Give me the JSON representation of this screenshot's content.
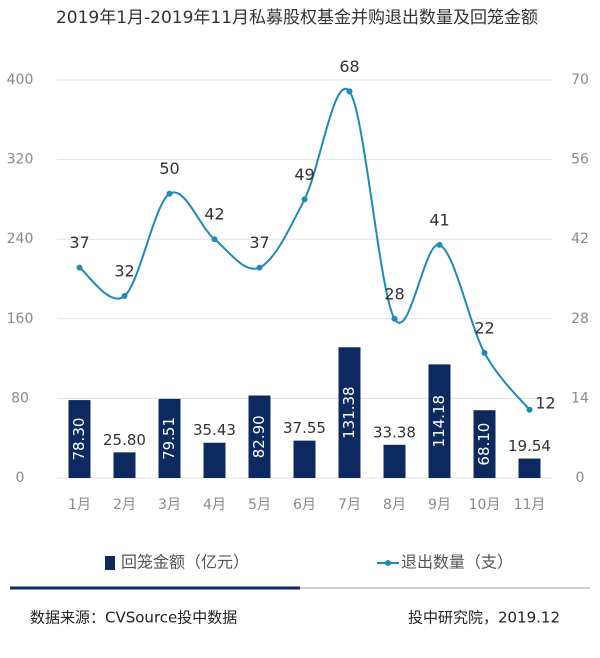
{
  "chart_data": {
    "type": "bar",
    "title": "2019年1月-2019年11月私募股权基金并购退出数量及回笼金额",
    "categories": [
      "1月",
      "2月",
      "3月",
      "4月",
      "5月",
      "6月",
      "7月",
      "8月",
      "9月",
      "10月",
      "11月"
    ],
    "series": [
      {
        "name": "回笼金额（亿元）",
        "type": "bar",
        "color": "#0c2a5f",
        "values": [
          78.3,
          25.8,
          79.51,
          35.43,
          82.9,
          37.55,
          131.38,
          33.38,
          114.18,
          68.1,
          19.54
        ],
        "value_labels": [
          "78.30",
          "25.80",
          "79.51",
          "35.43",
          "82.90",
          "37.55",
          "131.38",
          "33.38",
          "114.18",
          "68.10",
          "19.54"
        ]
      },
      {
        "name": "退出数量（支）",
        "type": "line",
        "axis": "y2",
        "color": "#1e8ab8",
        "values": [
          37,
          32,
          50,
          42,
          37,
          49,
          68,
          28,
          41,
          22,
          12
        ]
      }
    ],
    "ylim": [
      0,
      400
    ],
    "yticks": [
      0,
      80,
      160,
      240,
      320,
      400
    ],
    "y2lim": [
      0,
      70
    ],
    "y2ticks": [
      0,
      14,
      28,
      42,
      56,
      70
    ],
    "grid": true
  },
  "footer": {
    "source": "数据来源：CVSource投中数据",
    "org": "投中研究院，2019.12"
  }
}
